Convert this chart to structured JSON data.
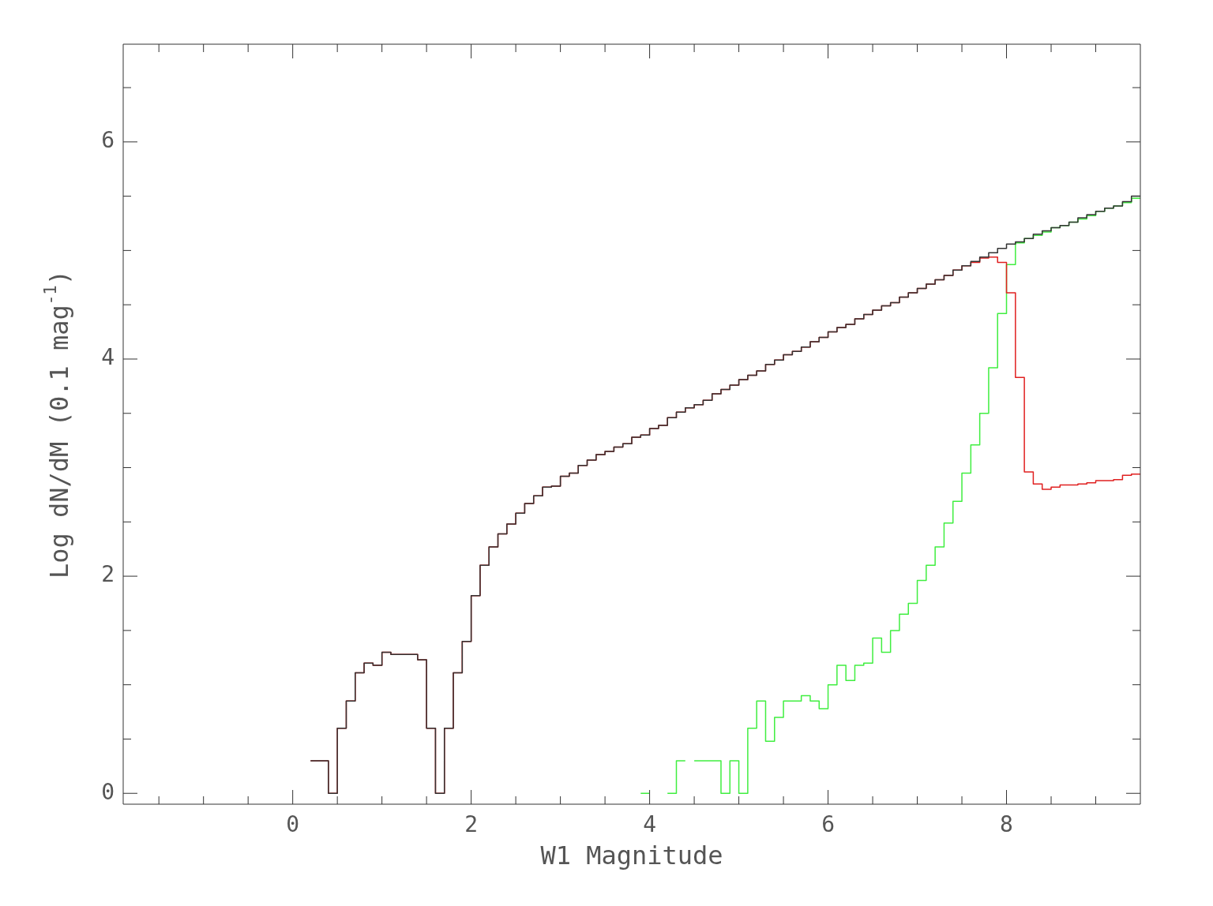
{
  "chart_data": {
    "type": "histogram",
    "xlabel": "W1 Magnitude",
    "ylabel": "Log dN/dM (0.1 mag$^{-1}$)",
    "xlim": [
      -1.9,
      9.5
    ],
    "ylim": [
      -0.1,
      6.9
    ],
    "xticks": [
      {
        "value": -1.5,
        "label": null
      },
      {
        "value": -1,
        "label": null
      },
      {
        "value": -0.5,
        "label": null
      },
      0,
      {
        "value": 0.5,
        "label": null
      },
      {
        "value": 1,
        "label": null
      },
      {
        "value": 1.5,
        "label": null
      },
      2,
      {
        "value": 2.5,
        "label": null
      },
      {
        "value": 3,
        "label": null
      },
      {
        "value": 3.5,
        "label": null
      },
      4,
      {
        "value": 4.5,
        "label": null
      },
      {
        "value": 5,
        "label": null
      },
      {
        "value": 5.5,
        "label": null
      },
      6,
      {
        "value": 6.5,
        "label": null
      },
      {
        "value": 7,
        "label": null
      },
      {
        "value": 7.5,
        "label": null
      },
      8,
      {
        "value": 8.5,
        "label": null
      },
      {
        "value": 9,
        "label": null
      }
    ],
    "yticks": [
      0,
      {
        "value": 0.5,
        "label": null
      },
      {
        "value": 1,
        "label": null
      },
      {
        "value": 1.5,
        "label": null
      },
      2,
      {
        "value": 2.5,
        "label": null
      },
      {
        "value": 3,
        "label": null
      },
      {
        "value": 3.5,
        "label": null
      },
      4,
      {
        "value": 4.5,
        "label": null
      },
      {
        "value": 5,
        "label": null
      },
      {
        "value": 5.5,
        "label": null
      },
      6,
      {
        "value": 6.5,
        "label": null
      }
    ],
    "bins": [
      0.2,
      0.3,
      0.4,
      0.5,
      0.6,
      0.7,
      0.8,
      0.9,
      1.0,
      1.1,
      1.2,
      1.3,
      1.4,
      1.5,
      1.6,
      1.7,
      1.8,
      1.9,
      2.0,
      2.1,
      2.2,
      2.3,
      2.4,
      2.5,
      2.6,
      2.7,
      2.8,
      2.9,
      3.0,
      3.1,
      3.2,
      3.3,
      3.4,
      3.5,
      3.6,
      3.7,
      3.8,
      3.9,
      4.0,
      4.1,
      4.2,
      4.3,
      4.4,
      4.5,
      4.6,
      4.7,
      4.8,
      4.9,
      5.0,
      5.1,
      5.2,
      5.3,
      5.4,
      5.5,
      5.6,
      5.7,
      5.8,
      5.9,
      6.0,
      6.1,
      6.2,
      6.3,
      6.4,
      6.5,
      6.6,
      6.7,
      6.8,
      6.9,
      7.0,
      7.1,
      7.2,
      7.3,
      7.4,
      7.5,
      7.6,
      7.7,
      7.8,
      7.9,
      8.0,
      8.1,
      8.2,
      8.3,
      8.4,
      8.5,
      8.6,
      8.7,
      8.8,
      8.9,
      9.0,
      9.1,
      9.2,
      9.3,
      9.4,
      9.5
    ],
    "series": [
      {
        "color": "#333333",
        "values": [
          0.3,
          0.3,
          0,
          0.6,
          0.85,
          1.11,
          1.2,
          1.18,
          1.3,
          1.28,
          1.28,
          1.28,
          1.23,
          0.6,
          0,
          0.6,
          1.11,
          1.4,
          1.82,
          2.1,
          2.27,
          2.39,
          2.48,
          2.58,
          2.67,
          2.74,
          2.82,
          2.83,
          2.92,
          2.95,
          3.02,
          3.07,
          3.12,
          3.15,
          3.19,
          3.22,
          3.28,
          3.3,
          3.36,
          3.39,
          3.46,
          3.51,
          3.55,
          3.58,
          3.62,
          3.68,
          3.72,
          3.76,
          3.81,
          3.85,
          3.89,
          3.95,
          3.99,
          4.04,
          4.07,
          4.11,
          4.16,
          4.2,
          4.25,
          4.29,
          4.32,
          4.37,
          4.41,
          4.45,
          4.49,
          4.52,
          4.57,
          4.61,
          4.65,
          4.69,
          4.73,
          4.77,
          4.82,
          4.86,
          4.9,
          4.94,
          4.98,
          5.02,
          5.06,
          5.08,
          5.11,
          5.15,
          5.18,
          5.21,
          5.23,
          5.26,
          5.3,
          5.33,
          5.36,
          5.39,
          5.41,
          5.45,
          5.5
        ]
      },
      {
        "color": "#e02020",
        "values": [
          0.3,
          0.3,
          0,
          0.6,
          0.85,
          1.11,
          1.2,
          1.18,
          1.3,
          1.28,
          1.28,
          1.28,
          1.23,
          0.6,
          0,
          0.6,
          1.11,
          1.4,
          1.82,
          2.1,
          2.27,
          2.39,
          2.48,
          2.58,
          2.67,
          2.74,
          2.82,
          2.83,
          2.92,
          2.95,
          3.02,
          3.07,
          3.12,
          3.15,
          3.19,
          3.22,
          3.28,
          3.3,
          3.36,
          3.39,
          3.46,
          3.51,
          3.55,
          3.58,
          3.62,
          3.68,
          3.72,
          3.76,
          3.81,
          3.85,
          3.89,
          3.95,
          3.99,
          4.04,
          4.07,
          4.11,
          4.16,
          4.2,
          4.25,
          4.29,
          4.32,
          4.37,
          4.41,
          4.45,
          4.49,
          4.52,
          4.57,
          4.61,
          4.65,
          4.69,
          4.73,
          4.77,
          4.82,
          4.86,
          4.89,
          4.93,
          4.94,
          4.89,
          4.61,
          3.83,
          2.96,
          2.85,
          2.8,
          2.82,
          2.84,
          2.84,
          2.85,
          2.86,
          2.88,
          2.88,
          2.89,
          2.93,
          2.94
        ]
      },
      {
        "type": "line",
        "color": "#40ee40",
        "x": [
          3.9,
          4.0
        ],
        "values": [
          0,
          0
        ]
      },
      {
        "color": "#40ee40",
        "bins": [
          4.2,
          4.3,
          4.4
        ],
        "values": [
          0,
          0.3
        ]
      },
      {
        "color": "#40ee40",
        "bins": [
          4.5,
          4.6,
          4.7,
          4.8,
          4.9,
          5.0,
          5.1,
          5.2,
          5.3,
          5.4,
          5.5,
          5.6,
          5.7,
          5.8,
          5.9,
          6.0,
          6.1,
          6.2,
          6.3,
          6.4,
          6.5,
          6.6,
          6.7,
          6.8,
          6.9,
          7.0,
          7.1,
          7.2,
          7.3,
          7.4,
          7.5,
          7.6,
          7.7,
          7.8,
          7.9,
          8.0,
          8.1,
          8.2,
          8.3,
          8.4,
          8.5,
          8.6,
          8.7,
          8.8,
          8.9,
          9.0,
          9.1,
          9.2,
          9.3,
          9.4,
          9.5
        ],
        "values": [
          0.3,
          0.3,
          0.3,
          0,
          0.3,
          0,
          0.6,
          0.85,
          0.48,
          0.7,
          0.85,
          0.85,
          0.9,
          0.85,
          0.78,
          1.0,
          1.18,
          1.04,
          1.18,
          1.2,
          1.43,
          1.3,
          1.5,
          1.65,
          1.75,
          1.96,
          2.1,
          2.27,
          2.49,
          2.69,
          2.95,
          3.21,
          3.5,
          3.92,
          4.42,
          4.87,
          5.07,
          5.11,
          5.14,
          5.17,
          5.21,
          5.23,
          5.26,
          5.29,
          5.32,
          5.36,
          5.39,
          5.41,
          5.44,
          5.48
        ]
      }
    ]
  }
}
